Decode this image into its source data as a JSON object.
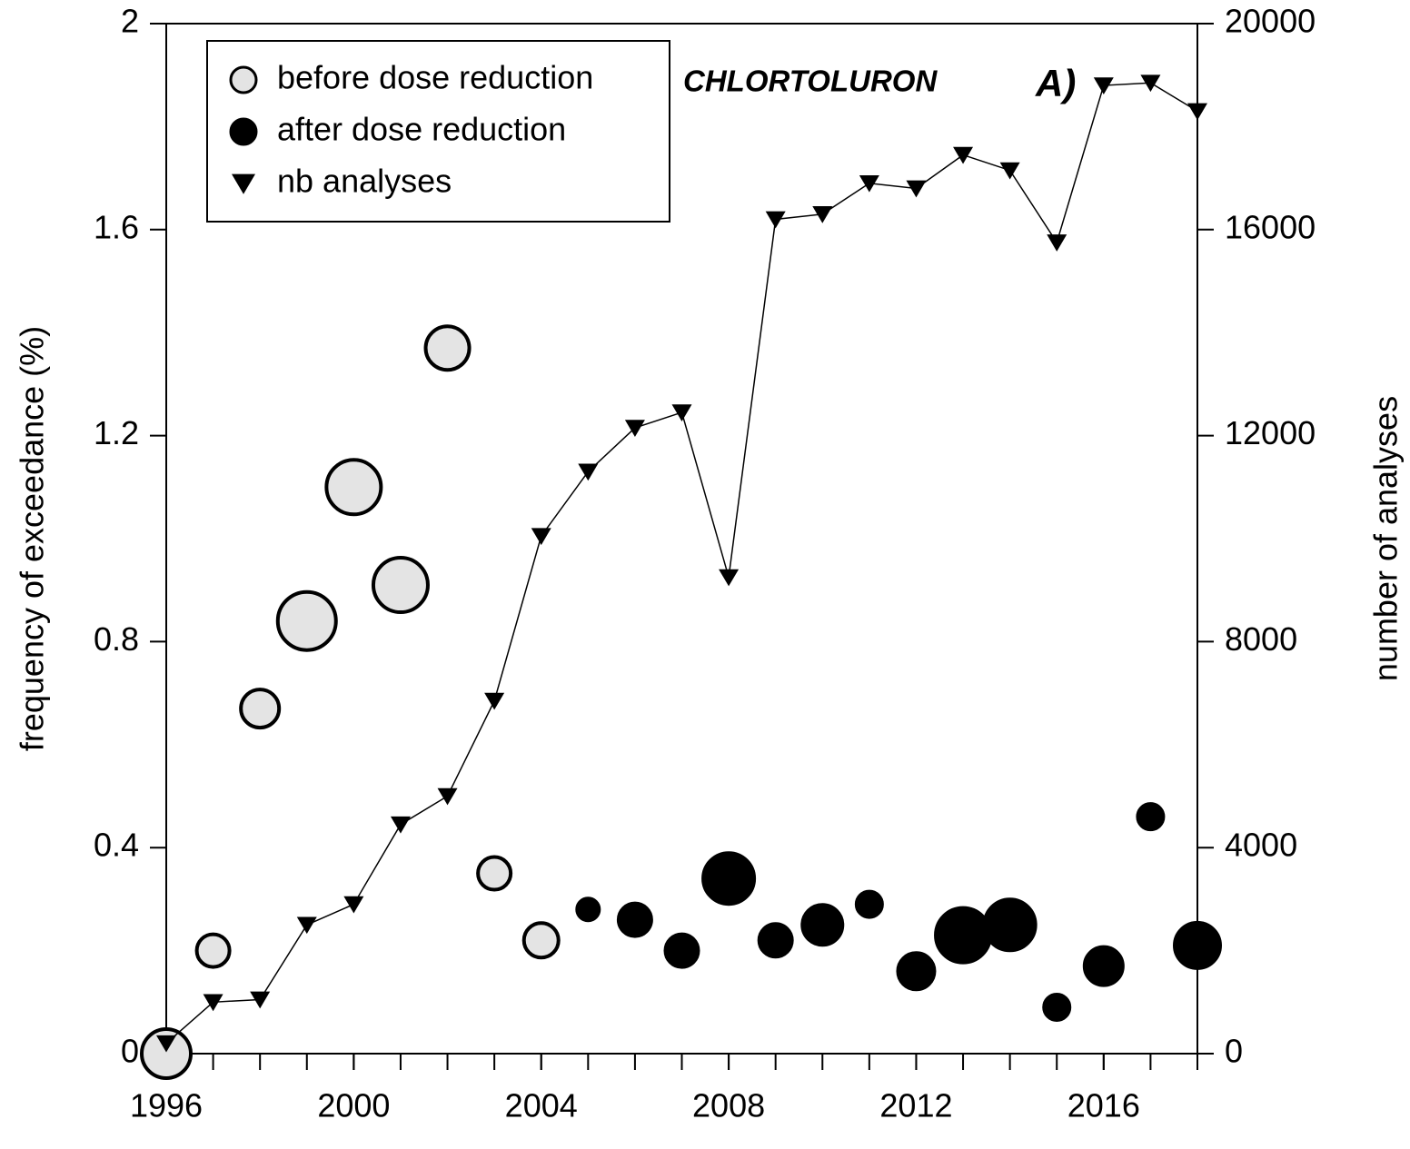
{
  "chart_data": {
    "type": "combo",
    "title": "CHLORTOLURON",
    "subtitle": "A)",
    "y_label": "frequency of exceedance (%)",
    "y2_label": "number of analyses",
    "x": [
      1996,
      1997,
      1998,
      1999,
      2000,
      2001,
      2002,
      2003,
      2004,
      2005,
      2006,
      2007,
      2008,
      2009,
      2010,
      2011,
      2012,
      2013,
      2014,
      2015,
      2016,
      2017,
      2018
    ],
    "xlim": [
      1996,
      2018
    ],
    "xticks": [
      1996,
      2000,
      2004,
      2008,
      2012,
      2016
    ],
    "ylim": [
      0,
      2
    ],
    "yticks": [
      0,
      0.4,
      0.8,
      1.2,
      1.6,
      2
    ],
    "y2lim": [
      0,
      20000
    ],
    "y2ticks": [
      0,
      4000,
      8000,
      12000,
      16000,
      20000
    ],
    "legend": "upper left",
    "series": [
      {
        "name": "before dose reduction",
        "type": "bubble",
        "color": "#e4e4e4",
        "values": [
          0,
          0.2,
          0.67,
          0.84,
          1.1,
          0.91,
          1.37,
          0.35,
          0.22,
          null,
          null,
          null,
          null,
          null,
          null,
          null,
          null,
          null,
          null,
          null,
          null,
          null,
          null
        ],
        "sizes": [
          27,
          18,
          21,
          32,
          30,
          30,
          24,
          18,
          19,
          null,
          null,
          null,
          null,
          null,
          null,
          null,
          null,
          null,
          null,
          null,
          null,
          null,
          null
        ]
      },
      {
        "name": "after dose reduction",
        "type": "bubble",
        "color": "#000000",
        "values": [
          null,
          null,
          null,
          null,
          null,
          null,
          null,
          null,
          null,
          0.28,
          0.26,
          0.2,
          0.34,
          0.22,
          0.25,
          0.29,
          0.16,
          0.23,
          0.25,
          0.09,
          0.17,
          0.46,
          0.21
        ],
        "sizes": [
          null,
          null,
          null,
          null,
          null,
          null,
          null,
          null,
          null,
          12,
          18,
          18,
          28,
          18,
          22,
          14,
          20,
          30,
          28,
          14,
          21,
          14,
          25
        ]
      },
      {
        "name": "nb analyses",
        "type": "line",
        "axis": "y2",
        "color": "#000000",
        "values": [
          200,
          1000,
          1050,
          2500,
          2900,
          4450,
          5000,
          6850,
          10050,
          11300,
          12150,
          12450,
          9250,
          16200,
          16300,
          16900,
          16800,
          17450,
          17150,
          15750,
          18800,
          18850,
          18300
        ]
      }
    ]
  }
}
